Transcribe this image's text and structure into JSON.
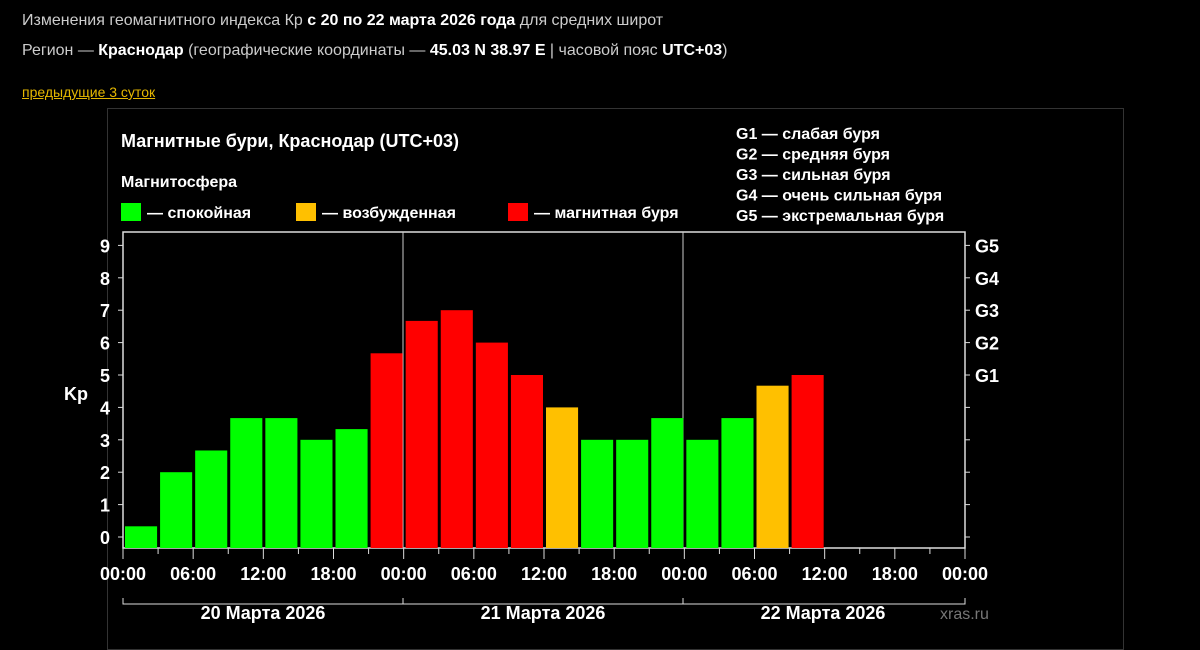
{
  "header": {
    "line1_pre": "Изменения геомагнитного индекса Кр ",
    "line1_bold": "с 20 по 22 марта 2026 года",
    "line1_post": " для средних широт",
    "line2_pre": "Регион — ",
    "region": "Краснодар",
    "line2_mid": " (географические координаты — ",
    "coords": "45.03 N 38.97 E",
    "line2_mid2": " | часовой пояс ",
    "tz": "UTC+03",
    "line2_end": ")"
  },
  "prev_link": "предыдущие 3 суток",
  "colors": {
    "quiet": "#00ff00",
    "excited": "#ffc000",
    "storm": "#ff0000"
  },
  "chart_data": {
    "type": "bar",
    "title": "Магнитные бури, Краснодар (UTC+03)",
    "legend_title": "Магнитосфера",
    "legend": [
      {
        "label": "— спокойная",
        "color": "#00ff00"
      },
      {
        "label": "— возбужденная",
        "color": "#ffc000"
      },
      {
        "label": "— магнитная буря",
        "color": "#ff0000"
      }
    ],
    "g_legend": [
      "G1 — слабая буря",
      "G2 — средняя буря",
      "G3 — сильная буря",
      "G4 — очень сильная буря",
      "G5 — экстремальная буря"
    ],
    "ylabel": "Kp",
    "ylim": [
      0,
      9
    ],
    "yticks": [
      "0",
      "1",
      "2",
      "3",
      "4",
      "5",
      "6",
      "7",
      "8",
      "9"
    ],
    "g_ticks": [
      {
        "label": "G1",
        "kp": 5
      },
      {
        "label": "G2",
        "kp": 6
      },
      {
        "label": "G3",
        "kp": 7
      },
      {
        "label": "G4",
        "kp": 8
      },
      {
        "label": "G5",
        "kp": 9
      }
    ],
    "xticks": [
      "00:00",
      "06:00",
      "12:00",
      "18:00",
      "00:00",
      "06:00",
      "12:00",
      "18:00",
      "00:00",
      "06:00",
      "12:00",
      "18:00",
      "00:00"
    ],
    "days": [
      "20 Марта 2026",
      "21 Марта 2026",
      "22 Марта 2026"
    ],
    "values": [
      0.33,
      2,
      2.67,
      3.67,
      3.67,
      3,
      3.33,
      5.67,
      6.67,
      7,
      6,
      5,
      4,
      3,
      3,
      3.67,
      3,
      3.67,
      4.67,
      5
    ],
    "status": [
      "quiet",
      "quiet",
      "quiet",
      "quiet",
      "quiet",
      "quiet",
      "quiet",
      "storm",
      "storm",
      "storm",
      "storm",
      "storm",
      "excited",
      "quiet",
      "quiet",
      "quiet",
      "quiet",
      "quiet",
      "excited",
      "storm"
    ],
    "watermark": "xras.ru"
  }
}
